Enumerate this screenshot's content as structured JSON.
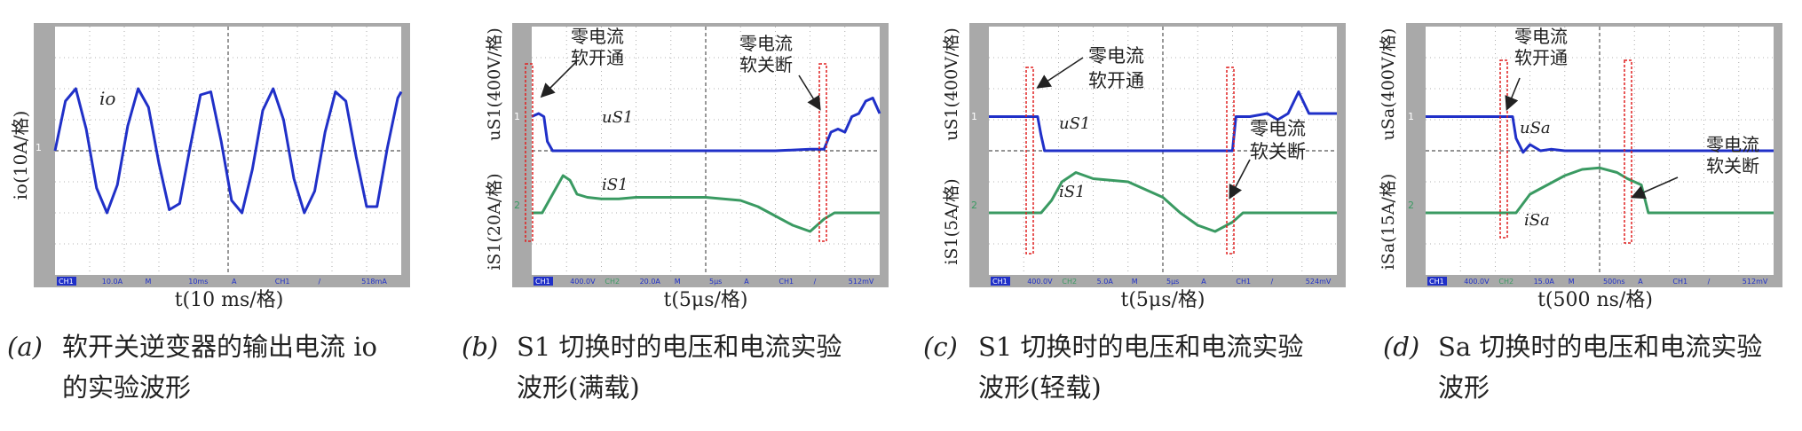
{
  "panels": [
    {
      "id": "a",
      "title": "",
      "xlabel": "t(10 ms/格)",
      "ylabels": [
        "io(10A/格)"
      ],
      "status": [
        "CH1",
        "10.0A",
        "M",
        "10ms",
        "A",
        "CH1",
        "/",
        "518mA"
      ],
      "caption_tag": "(a)",
      "caption_lines": [
        "软开关逆变器的输出电流 io",
        "的实验波形"
      ],
      "series": [
        {
          "name": "io",
          "color": "#2030c8",
          "x": [
            0,
            0.3,
            0.6,
            0.9,
            1.2,
            1.5,
            1.8,
            2.1,
            2.4,
            2.7,
            3,
            3.3,
            3.6,
            3.9,
            4.2,
            4.5,
            4.8,
            5.1,
            5.4,
            5.7,
            6,
            6.3,
            6.6,
            6.9,
            7.2,
            7.5,
            7.8,
            8.1,
            8.4,
            8.7,
            9,
            9.3,
            9.6,
            9.9,
            10
          ],
          "y": [
            0,
            1.6,
            2.0,
            0.7,
            -1.2,
            -2.0,
            -1.1,
            0.8,
            2.0,
            1.4,
            -0.4,
            -1.9,
            -1.7,
            0.1,
            1.8,
            1.9,
            0.3,
            -1.6,
            -2.0,
            -0.6,
            1.3,
            2.0,
            1.0,
            -0.9,
            -2.0,
            -1.3,
            0.6,
            1.9,
            1.6,
            -0.2,
            -1.8,
            -1.8,
            0.1,
            1.7,
            1.9
          ]
        }
      ],
      "annotations": [
        {
          "text": "io"
        }
      ]
    },
    {
      "id": "b",
      "title": "",
      "xlabel": "t(5μs/格)",
      "ylabels": [
        "uS1(400V/格)",
        "iS1(20A/格)"
      ],
      "status": [
        "CH1",
        "400.0V",
        "CH2",
        "20.0A",
        "M",
        "5μs",
        "A",
        "CH1",
        "/",
        "512mV"
      ],
      "caption_tag": "(b)",
      "caption_lines": [
        "S1 切换时的电压和电流实验",
        "波形(满载)"
      ],
      "series": [
        {
          "name": "uS1",
          "color": "#2030c8",
          "x": [
            0,
            0.2,
            0.35,
            0.45,
            0.6,
            1,
            2,
            3,
            4,
            5,
            6,
            7,
            8,
            8.4,
            8.6,
            8.8,
            9,
            9.2,
            9.4,
            9.6,
            9.8,
            10
          ],
          "y": [
            1.1,
            1.2,
            1.1,
            0.3,
            0,
            0,
            0,
            0,
            0,
            0,
            0,
            0,
            0.05,
            0.05,
            0.6,
            0.7,
            0.6,
            1.1,
            1.2,
            1.6,
            1.7,
            1.2
          ]
        },
        {
          "name": "iS1",
          "color": "#3a9a62",
          "x": [
            0,
            0.3,
            0.6,
            0.9,
            1.1,
            1.3,
            1.6,
            2,
            2.5,
            3,
            4,
            5,
            6,
            6.5,
            7,
            7.5,
            8,
            8.4,
            8.7,
            9,
            9.5,
            10
          ],
          "y": [
            -2,
            -2,
            -1.4,
            -0.8,
            -0.95,
            -1.4,
            -1.5,
            -1.55,
            -1.55,
            -1.5,
            -1.5,
            -1.5,
            -1.6,
            -1.8,
            -2.1,
            -2.4,
            -2.6,
            -2.2,
            -2,
            -2,
            -2,
            -2
          ]
        }
      ],
      "annotations": [
        {
          "text": "零电流"
        },
        {
          "text": "软开通"
        },
        {
          "text": "零电流"
        },
        {
          "text": "软关断"
        },
        {
          "text": "uS1"
        },
        {
          "text": "iS1"
        }
      ]
    },
    {
      "id": "c",
      "title": "",
      "xlabel": "t(5μs/格)",
      "ylabels": [
        "uS1(400V/格)",
        "iS1(5A/格)"
      ],
      "status": [
        "CH1",
        "400.0V",
        "CH2",
        "5.0A",
        "M",
        "5μs",
        "A",
        "CH1",
        "/",
        "524mV"
      ],
      "caption_tag": "(c)",
      "caption_lines": [
        "S1 切换时的电压和电流实验",
        "波形(轻载)"
      ],
      "series": [
        {
          "name": "uS1",
          "color": "#2030c8",
          "x": [
            0,
            0.5,
            1,
            1.4,
            1.5,
            1.6,
            2,
            3,
            4,
            5,
            6.5,
            7,
            7.1,
            7.5,
            8,
            8.3,
            8.6,
            8.9,
            9.2,
            9.6,
            10
          ],
          "y": [
            1.1,
            1.1,
            1.1,
            1.1,
            0.5,
            0,
            0,
            0,
            0,
            0,
            0,
            0,
            1.1,
            1.1,
            1.2,
            1.0,
            1.2,
            1.9,
            1.2,
            1.2,
            1.2
          ]
        },
        {
          "name": "iS1",
          "color": "#3a9a62",
          "x": [
            0,
            1,
            1.5,
            1.8,
            2.1,
            2.5,
            3,
            4,
            5,
            5.5,
            6,
            6.5,
            7,
            7.3,
            7.6,
            8,
            8.5,
            9,
            9.5,
            10
          ],
          "y": [
            -2,
            -2,
            -2,
            -1.6,
            -1.0,
            -0.7,
            -0.9,
            -1.0,
            -1.5,
            -2,
            -2.4,
            -2.6,
            -2.3,
            -2,
            -2,
            -2,
            -2,
            -2,
            -2,
            -2
          ]
        }
      ],
      "annotations": [
        {
          "text": "零电流"
        },
        {
          "text": "软开通"
        },
        {
          "text": "零电流"
        },
        {
          "text": "软关断"
        },
        {
          "text": "uS1"
        },
        {
          "text": "iS1"
        }
      ]
    },
    {
      "id": "d",
      "title": "",
      "xlabel": "t(500 ns/格)",
      "ylabels": [
        "uSa(400V/格)",
        "iSa(15A/格)"
      ],
      "status": [
        "CH1",
        "400.0V",
        "CH2",
        "15.0A",
        "M",
        "500ns",
        "A",
        "CH1",
        "/",
        "512mV"
      ],
      "caption_tag": "(d)",
      "caption_lines": [
        "Sa 切换时的电压和电流实验",
        "波形"
      ],
      "series": [
        {
          "name": "uSa",
          "color": "#2030c8",
          "x": [
            0,
            1,
            2,
            2.5,
            2.6,
            2.8,
            3,
            3.3,
            3.6,
            4,
            5,
            6,
            7,
            8,
            9,
            10
          ],
          "y": [
            1.1,
            1.1,
            1.1,
            1.1,
            0.4,
            -0.05,
            0.2,
            0,
            0.05,
            0,
            0,
            0,
            0,
            0,
            0,
            0
          ]
        },
        {
          "name": "iSa",
          "color": "#3a9a62",
          "x": [
            0,
            1,
            2,
            2.6,
            3,
            3.5,
            4,
            4.5,
            5,
            5.5,
            5.8,
            6.2,
            6.4,
            6.6,
            7,
            8,
            9,
            10
          ],
          "y": [
            -2,
            -2,
            -2,
            -2,
            -1.4,
            -1.1,
            -0.8,
            -0.6,
            -0.55,
            -0.7,
            -0.9,
            -1.1,
            -2,
            -2,
            -2,
            -2,
            -2,
            -2
          ]
        }
      ],
      "annotations": [
        {
          "text": "零电流"
        },
        {
          "text": "软开通"
        },
        {
          "text": "零电流"
        },
        {
          "text": "软关断"
        },
        {
          "text": "uSa"
        },
        {
          "text": "iSa"
        }
      ]
    }
  ],
  "chart_data": [
    {
      "type": "line",
      "title": "",
      "xlabel": "t(10 ms/格)",
      "ylabel": "io(10A/格)",
      "xlim": [
        0,
        10
      ],
      "ylim": [
        -4,
        4
      ],
      "grid": true,
      "series": [
        {
          "name": "io",
          "x": [
            0,
            0.3,
            0.6,
            0.9,
            1.2,
            1.5,
            1.8,
            2.1,
            2.4,
            2.7,
            3,
            3.3,
            3.6,
            3.9,
            4.2,
            4.5,
            4.8,
            5.1,
            5.4,
            5.7,
            6,
            6.3,
            6.6,
            6.9,
            7.2,
            7.5,
            7.8,
            8.1,
            8.4,
            8.7,
            9,
            9.3,
            9.6,
            9.9,
            10
          ],
          "y": [
            0,
            1.6,
            2.0,
            0.7,
            -1.2,
            -2.0,
            -1.1,
            0.8,
            2.0,
            1.4,
            -0.4,
            -1.9,
            -1.7,
            0.1,
            1.8,
            1.9,
            0.3,
            -1.6,
            -2.0,
            -0.6,
            1.3,
            2.0,
            1.0,
            -0.9,
            -2.0,
            -1.3,
            0.6,
            1.9,
            1.6,
            -0.2,
            -1.8,
            -1.8,
            0.1,
            1.7,
            1.9
          ]
        }
      ]
    },
    {
      "type": "line",
      "title": "",
      "xlabel": "t(5μs/格)",
      "ylabel": "uS1(400V/格), iS1(20A/格)",
      "xlim": [
        0,
        10
      ],
      "ylim": [
        -4,
        4
      ],
      "grid": true,
      "series": [
        {
          "name": "uS1",
          "x": [
            0,
            0.2,
            0.35,
            0.45,
            0.6,
            1,
            2,
            3,
            4,
            5,
            6,
            7,
            8,
            8.4,
            8.6,
            8.8,
            9,
            9.2,
            9.4,
            9.6,
            9.8,
            10
          ],
          "y": [
            1.1,
            1.2,
            1.1,
            0.3,
            0,
            0,
            0,
            0,
            0,
            0,
            0,
            0,
            0.05,
            0.05,
            0.6,
            0.7,
            0.6,
            1.1,
            1.2,
            1.6,
            1.7,
            1.2
          ]
        },
        {
          "name": "iS1",
          "x": [
            0,
            0.3,
            0.6,
            0.9,
            1.1,
            1.3,
            1.6,
            2,
            2.5,
            3,
            4,
            5,
            6,
            6.5,
            7,
            7.5,
            8,
            8.4,
            8.7,
            9,
            9.5,
            10
          ],
          "y": [
            -2,
            -2,
            -1.4,
            -0.8,
            -0.95,
            -1.4,
            -1.5,
            -1.55,
            -1.55,
            -1.5,
            -1.5,
            -1.5,
            -1.6,
            -1.8,
            -2.1,
            -2.4,
            -2.6,
            -2.2,
            -2,
            -2,
            -2,
            -2
          ]
        }
      ]
    },
    {
      "type": "line",
      "title": "",
      "xlabel": "t(5μs/格)",
      "ylabel": "uS1(400V/格), iS1(5A/格)",
      "xlim": [
        0,
        10
      ],
      "ylim": [
        -4,
        4
      ],
      "grid": true,
      "series": [
        {
          "name": "uS1",
          "x": [
            0,
            0.5,
            1,
            1.4,
            1.5,
            1.6,
            2,
            3,
            4,
            5,
            6.5,
            7,
            7.1,
            7.5,
            8,
            8.3,
            8.6,
            8.9,
            9.2,
            9.6,
            10
          ],
          "y": [
            1.1,
            1.1,
            1.1,
            1.1,
            0.5,
            0,
            0,
            0,
            0,
            0,
            0,
            0,
            1.1,
            1.1,
            1.2,
            1.0,
            1.2,
            1.9,
            1.2,
            1.2,
            1.2
          ]
        },
        {
          "name": "iS1",
          "x": [
            0,
            1,
            1.5,
            1.8,
            2.1,
            2.5,
            3,
            4,
            5,
            5.5,
            6,
            6.5,
            7,
            7.3,
            7.6,
            8,
            8.5,
            9,
            9.5,
            10
          ],
          "y": [
            -2,
            -2,
            -2,
            -1.6,
            -1.0,
            -0.7,
            -0.9,
            -1.0,
            -1.5,
            -2,
            -2.4,
            -2.6,
            -2.3,
            -2,
            -2,
            -2,
            -2,
            -2,
            -2,
            -2
          ]
        }
      ]
    },
    {
      "type": "line",
      "title": "",
      "xlabel": "t(500 ns/格)",
      "ylabel": "uSa(400V/格), iSa(15A/格)",
      "xlim": [
        0,
        10
      ],
      "ylim": [
        -4,
        4
      ],
      "grid": true,
      "series": [
        {
          "name": "uSa",
          "x": [
            0,
            1,
            2,
            2.5,
            2.6,
            2.8,
            3,
            3.3,
            3.6,
            4,
            5,
            6,
            7,
            8,
            9,
            10
          ],
          "y": [
            1.1,
            1.1,
            1.1,
            1.1,
            0.4,
            -0.05,
            0.2,
            0,
            0.05,
            0,
            0,
            0,
            0,
            0,
            0,
            0
          ]
        },
        {
          "name": "iSa",
          "x": [
            0,
            1,
            2,
            2.6,
            3,
            3.5,
            4,
            4.5,
            5,
            5.5,
            5.8,
            6.2,
            6.4,
            6.6,
            7,
            8,
            9,
            10
          ],
          "y": [
            -2,
            -2,
            -2,
            -2,
            -1.4,
            -1.1,
            -0.8,
            -0.6,
            -0.55,
            -0.7,
            -0.9,
            -1.1,
            -2,
            -2,
            -2,
            -2,
            -2,
            -2
          ]
        }
      ]
    }
  ]
}
